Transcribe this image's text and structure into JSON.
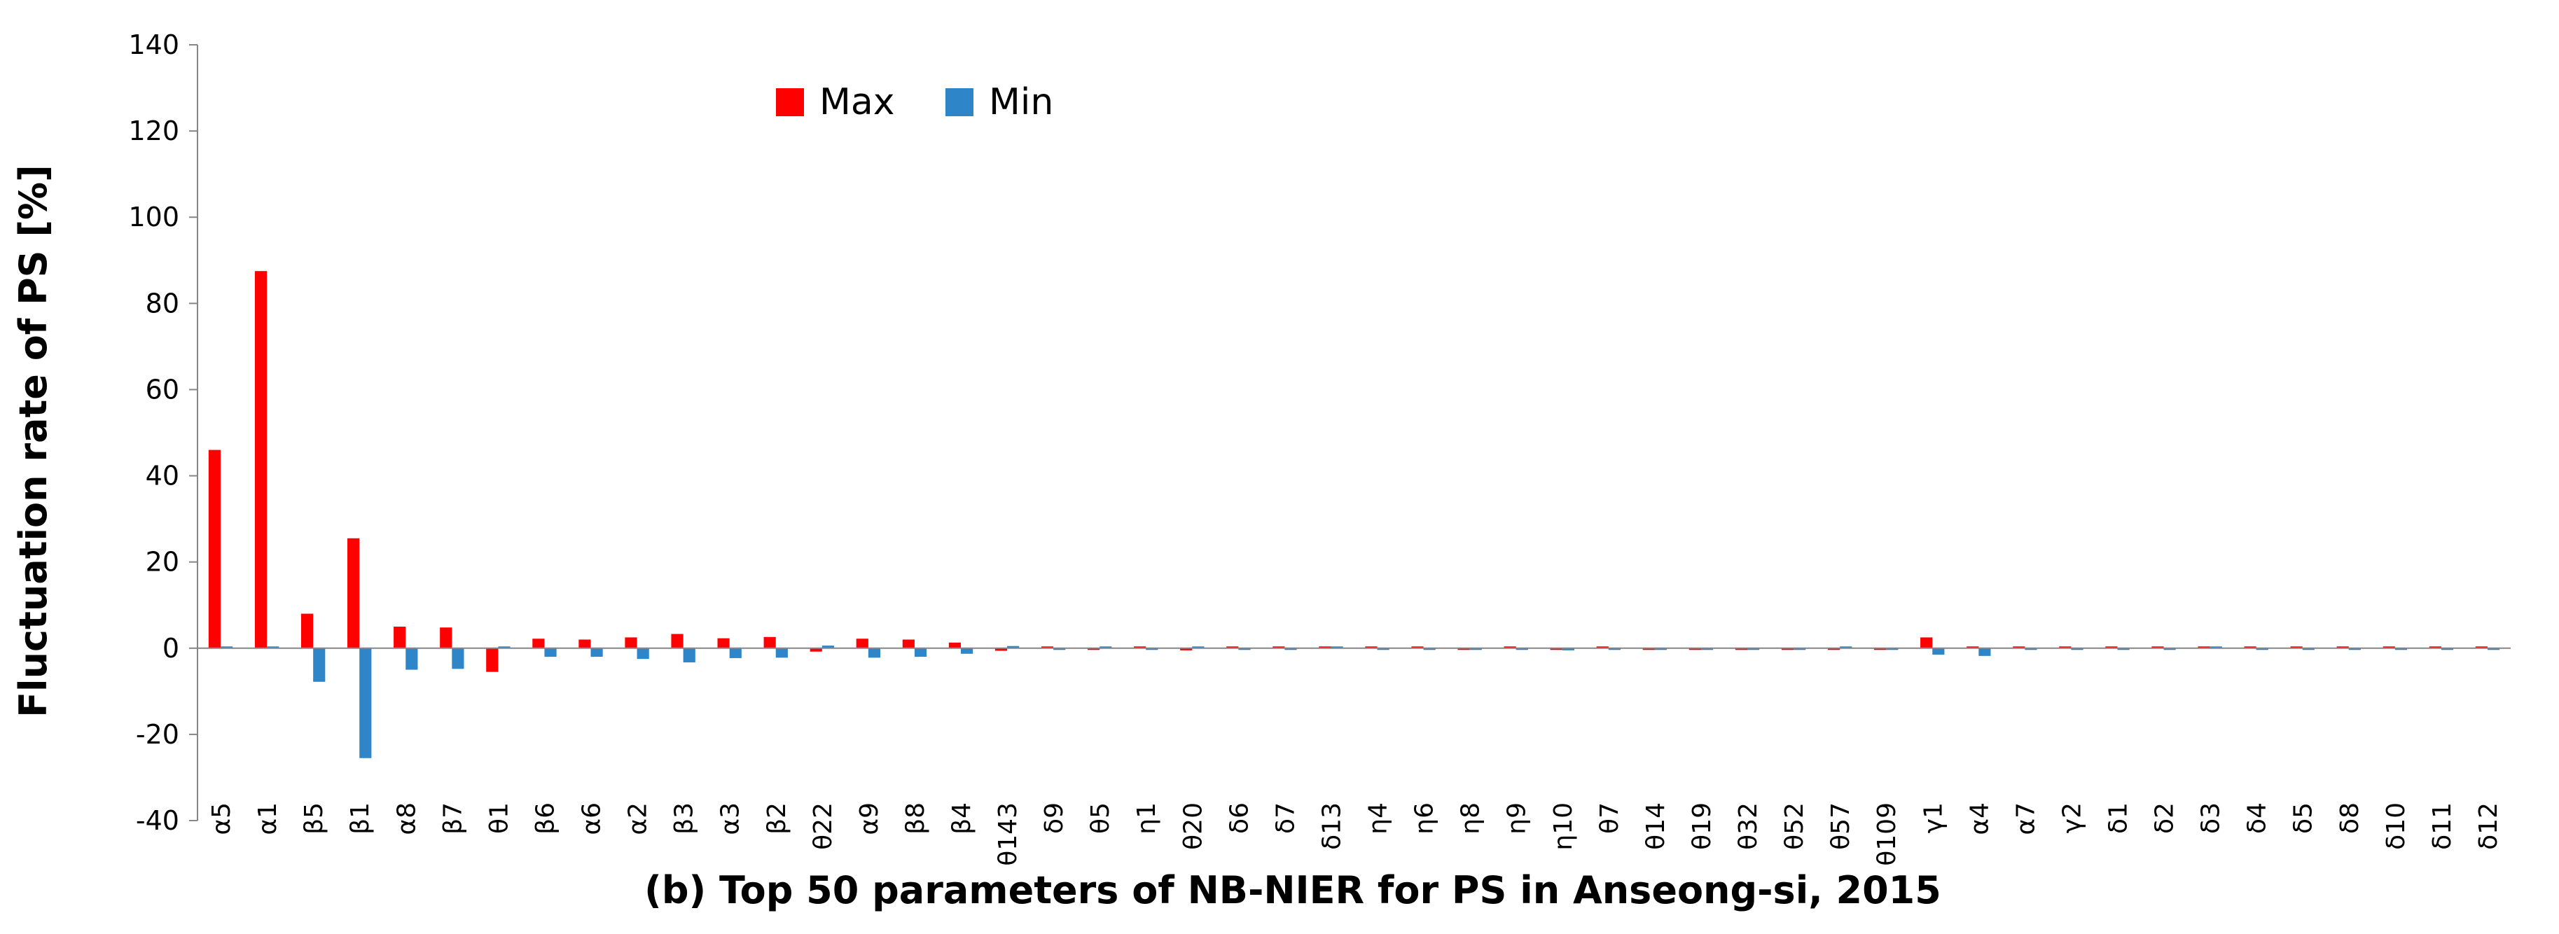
{
  "chart_data": {
    "type": "bar",
    "ylabel": "Fluctuation rate of PS [%]",
    "caption": "(b) Top 50 parameters of NB-NIER for PS in Anseong-si, 2015",
    "ylim": [
      -40,
      140
    ],
    "yticks": [
      -40,
      -20,
      0,
      20,
      40,
      60,
      80,
      100,
      120,
      140
    ],
    "grid": false,
    "legend_position": "top-center",
    "categories": [
      "α5",
      "α1",
      "β5",
      "β1",
      "α8",
      "β7",
      "θ1",
      "β6",
      "α6",
      "α2",
      "β3",
      "α3",
      "β2",
      "θ22",
      "α9",
      "β8",
      "β4",
      "θ143",
      "δ9",
      "θ5",
      "η1",
      "θ20",
      "δ6",
      "δ7",
      "δ13",
      "η4",
      "η6",
      "η8",
      "η9",
      "η10",
      "θ7",
      "θ14",
      "θ19",
      "θ32",
      "θ52",
      "θ57",
      "θ109",
      "γ1",
      "α4",
      "α7",
      "γ2",
      "δ1",
      "δ2",
      "δ3",
      "δ4",
      "δ5",
      "δ8",
      "δ10",
      "δ11",
      "δ12"
    ],
    "series": [
      {
        "name": "Max",
        "color": "#ff0000",
        "values": [
          46,
          87.5,
          8,
          25.5,
          5,
          4.8,
          -5.5,
          2.2,
          2,
          2.5,
          3.3,
          2.3,
          2.6,
          -0.8,
          2.2,
          2,
          1.3,
          -0.6,
          0.3,
          -0.4,
          0.4,
          -0.5,
          0.2,
          0.2,
          0.2,
          0.1,
          0.1,
          -0.2,
          0.1,
          -0.2,
          0.1,
          -0.2,
          -0.2,
          -0.2,
          -0.3,
          -0.3,
          -0.4,
          2.5,
          0.2,
          0.1,
          0.1,
          0.1,
          0.1,
          0.1,
          0.1,
          0.1,
          0.1,
          0.1,
          0.3,
          0.1
        ]
      },
      {
        "name": "Min",
        "color": "#2e86c8",
        "values": [
          0,
          0,
          -7.8,
          -25.5,
          -5,
          -4.8,
          0,
          -2,
          -2,
          -2.5,
          -3.3,
          -2.3,
          -2.2,
          0.6,
          -2.2,
          -2,
          -1.3,
          0.5,
          -0.3,
          0.4,
          -0.4,
          0.3,
          -0.2,
          -0.2,
          0.3,
          -0.1,
          -0.1,
          -0.4,
          -0.2,
          -0.5,
          -0.1,
          -0.1,
          -0.1,
          -0.1,
          -0.1,
          0.2,
          -0.1,
          -1.5,
          -1.8,
          -0.1,
          -0.1,
          -0.1,
          -0.1,
          0.4,
          -0.1,
          -0.1,
          -0.1,
          -0.1,
          -0.4,
          -0.1
        ]
      }
    ]
  }
}
